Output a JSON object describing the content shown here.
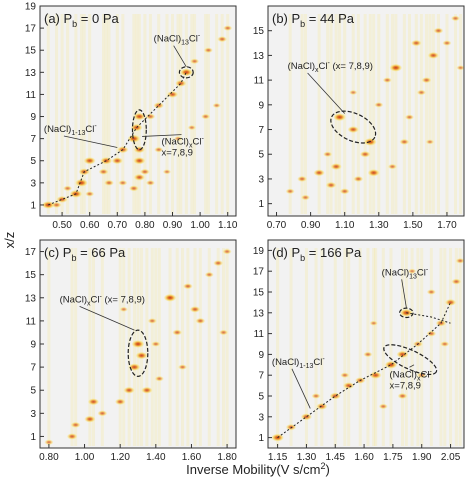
{
  "figure": {
    "ylabel": "x/z",
    "xlabel_text": "Inverse Mobility(V s/cm",
    "xlabel_sup": "2",
    "xlabel_close": ")"
  },
  "chart_data": [
    {
      "type": "heatmap",
      "panel_label": "(a) P",
      "panel_sub": "b",
      "panel_value": "= 0 Pa",
      "xlim": [
        0.42,
        1.13
      ],
      "ylim": [
        0,
        19
      ],
      "x_ticks": [
        "0.50",
        "0.60",
        "0.70",
        "0.80",
        "0.90",
        "1.00",
        "1.10"
      ],
      "y_ticks": [
        "1",
        "3",
        "5",
        "7",
        "9",
        "11",
        "13",
        "15",
        "17",
        "19"
      ],
      "spots": [
        [
          0.45,
          1,
          1
        ],
        [
          0.5,
          1.5,
          0.8
        ],
        [
          0.55,
          2,
          1
        ],
        [
          0.57,
          3,
          1
        ],
        [
          0.58,
          4,
          0.8
        ],
        [
          0.6,
          5,
          0.9
        ],
        [
          0.65,
          4,
          0.6
        ],
        [
          0.66,
          5,
          0.9
        ],
        [
          0.7,
          5,
          0.8
        ],
        [
          0.72,
          6,
          0.8
        ],
        [
          0.76,
          7,
          1
        ],
        [
          0.77,
          8,
          0.9
        ],
        [
          0.78,
          9,
          0.9
        ],
        [
          0.78,
          6,
          0.8
        ],
        [
          0.8,
          4,
          0.6
        ],
        [
          0.82,
          9,
          0.6
        ],
        [
          0.85,
          10,
          0.7
        ],
        [
          0.9,
          11,
          0.8
        ],
        [
          0.93,
          12,
          0.8
        ],
        [
          0.95,
          13,
          1
        ],
        [
          0.98,
          14,
          0.5
        ],
        [
          1.03,
          15,
          0.5
        ],
        [
          1.08,
          16,
          0.6
        ],
        [
          1.1,
          17,
          0.5
        ],
        [
          0.6,
          2,
          0.5
        ],
        [
          0.67,
          3,
          0.6
        ],
        [
          0.72,
          3,
          0.5
        ],
        [
          0.76,
          2.5,
          0.6
        ],
        [
          0.78,
          3.5,
          0.8
        ],
        [
          0.78,
          5,
          0.9
        ],
        [
          0.82,
          3,
          0.5
        ],
        [
          0.85,
          6,
          0.5
        ],
        [
          0.88,
          4,
          0.4
        ],
        [
          0.92,
          7,
          0.4
        ],
        [
          0.97,
          8,
          0.4
        ],
        [
          1.02,
          9,
          0.5
        ],
        [
          1.06,
          10,
          0.4
        ],
        [
          0.52,
          2.5,
          0.5
        ],
        [
          0.48,
          1,
          0.6
        ]
      ],
      "series_line": [
        [
          0.45,
          1
        ],
        [
          0.55,
          2
        ],
        [
          0.58,
          4
        ],
        [
          0.66,
          5
        ],
        [
          0.72,
          6
        ],
        [
          0.77,
          8
        ],
        [
          0.85,
          10
        ],
        [
          0.93,
          12
        ],
        [
          0.95,
          13
        ]
      ],
      "ellipses": [
        {
          "x": 0.78,
          "y": 7.8,
          "rx": 0.025,
          "ry": 1.8
        },
        {
          "x": 0.95,
          "y": 13,
          "rx": 0.025,
          "ry": 0.5
        }
      ],
      "annotations": [
        {
          "text": "(NaCl)",
          "sub": "13",
          "sup": "Cl",
          "sup2": "-",
          "anchor": "top-right"
        },
        {
          "text": "(NaCl)",
          "sub": "1-13",
          "sup": "Cl",
          "sup2": "-",
          "anchor": "mid-left"
        },
        {
          "text": "(NaCl)",
          "sub": "x",
          "sup": "Cl",
          "sup2": "-",
          "extra": "x=7,8,9",
          "anchor": "mid-right"
        }
      ]
    },
    {
      "type": "heatmap",
      "panel_label": "(b) P",
      "panel_sub": "b",
      "panel_value": "= 44 Pa",
      "xlim": [
        0.65,
        1.8
      ],
      "ylim": [
        0,
        17
      ],
      "x_ticks": [
        "0.70",
        "0.90",
        "1.10",
        "1.30",
        "1.50",
        "1.70"
      ],
      "y_ticks": [
        "1",
        "3",
        "5",
        "7",
        "9",
        "11",
        "13",
        "15"
      ],
      "spots": [
        [
          0.78,
          2,
          0.5
        ],
        [
          0.85,
          3,
          0.6
        ],
        [
          0.87,
          1.5,
          0.5
        ],
        [
          0.95,
          3.5,
          0.8
        ],
        [
          1.02,
          2.5,
          0.7
        ],
        [
          1.05,
          4,
          0.8
        ],
        [
          1.07,
          8,
          1
        ],
        [
          1.1,
          2,
          0.6
        ],
        [
          1.15,
          7,
          0.8
        ],
        [
          1.18,
          3,
          0.6
        ],
        [
          1.22,
          5,
          0.7
        ],
        [
          1.25,
          6,
          1
        ],
        [
          1.27,
          3.5,
          0.9
        ],
        [
          1.3,
          9,
          0.5
        ],
        [
          1.38,
          4,
          0.5
        ],
        [
          1.4,
          12,
          1
        ],
        [
          1.45,
          6,
          0.6
        ],
        [
          1.48,
          8,
          0.5
        ],
        [
          1.52,
          14,
          0.7
        ],
        [
          1.55,
          10,
          0.5
        ],
        [
          1.58,
          11,
          0.6
        ],
        [
          1.62,
          13,
          0.8
        ],
        [
          1.65,
          15,
          0.6
        ],
        [
          1.7,
          14,
          0.5
        ],
        [
          1.75,
          16,
          0.5
        ],
        [
          1.78,
          12,
          0.4
        ],
        [
          1.15,
          10,
          0.4
        ],
        [
          1.0,
          5,
          0.5
        ],
        [
          1.35,
          11,
          0.5
        ],
        [
          1.6,
          6,
          0.4
        ]
      ],
      "ellipses": [
        {
          "x": 1.15,
          "y": 7.2,
          "rx": 0.14,
          "ry": 1.1
        }
      ],
      "annotations": [
        {
          "text": "(NaCl)",
          "sub": "x",
          "sup": "Cl",
          "sup2": "-",
          "extra": "(x= 7,8,9)",
          "anchor": "top-left"
        }
      ]
    },
    {
      "type": "heatmap",
      "panel_label": "(c) P",
      "panel_sub": "b",
      "panel_value": "= 66 Pa",
      "xlim": [
        0.75,
        1.85
      ],
      "ylim": [
        0,
        18
      ],
      "x_ticks": [
        "0.80",
        "1.00",
        "1.20",
        "1.40",
        "1.60",
        "1.80"
      ],
      "y_ticks": [
        "1",
        "3",
        "5",
        "7",
        "9",
        "11",
        "13",
        "15",
        "17"
      ],
      "spots": [
        [
          0.8,
          0.5,
          0.5
        ],
        [
          0.93,
          1,
          0.7
        ],
        [
          0.95,
          2,
          0.6
        ],
        [
          1.03,
          2.5,
          0.8
        ],
        [
          1.05,
          4,
          0.8
        ],
        [
          1.1,
          3,
          0.6
        ],
        [
          1.2,
          4,
          0.7
        ],
        [
          1.25,
          5,
          0.8
        ],
        [
          1.28,
          7,
          0.9
        ],
        [
          1.3,
          9,
          1
        ],
        [
          1.32,
          8,
          0.9
        ],
        [
          1.35,
          5,
          0.8
        ],
        [
          1.38,
          11,
          0.5
        ],
        [
          1.42,
          6,
          0.5
        ],
        [
          1.48,
          13,
          1
        ],
        [
          1.52,
          10,
          0.6
        ],
        [
          1.55,
          7,
          0.5
        ],
        [
          1.58,
          14,
          0.6
        ],
        [
          1.62,
          12,
          0.7
        ],
        [
          1.65,
          11,
          0.6
        ],
        [
          1.7,
          15,
          0.5
        ],
        [
          1.75,
          16,
          0.6
        ],
        [
          1.78,
          10,
          0.5
        ],
        [
          1.8,
          17,
          0.5
        ],
        [
          1.22,
          12,
          0.4
        ],
        [
          1.4,
          9,
          0.5
        ]
      ],
      "ellipses": [
        {
          "x": 1.3,
          "y": 8.2,
          "rx": 0.055,
          "ry": 2.0
        }
      ],
      "annotations": [
        {
          "text": "(NaCl)",
          "sub": "x",
          "sup": "Cl",
          "sup2": "-",
          "extra": "(x= 7,8,9)",
          "anchor": "top-left"
        }
      ]
    },
    {
      "type": "heatmap",
      "panel_label": "(d) P",
      "panel_sub": "b",
      "panel_value": "= 166 Pa",
      "xlim": [
        1.1,
        2.12
      ],
      "ylim": [
        0,
        20
      ],
      "x_ticks": [
        "1.15",
        "1.30",
        "1.45",
        "1.60",
        "1.75",
        "1.90",
        "2.05"
      ],
      "y_ticks": [
        "1",
        "3",
        "5",
        "7",
        "9",
        "11",
        "13",
        "15",
        "17",
        "19"
      ],
      "spots": [
        [
          1.15,
          1,
          1
        ],
        [
          1.22,
          2,
          0.7
        ],
        [
          1.3,
          3,
          0.8
        ],
        [
          1.38,
          4,
          0.8
        ],
        [
          1.45,
          5,
          0.8
        ],
        [
          1.52,
          6,
          0.8
        ],
        [
          1.58,
          6.5,
          0.7
        ],
        [
          1.66,
          7,
          0.9
        ],
        [
          1.74,
          8,
          1
        ],
        [
          1.8,
          9,
          0.9
        ],
        [
          1.82,
          13,
          1
        ],
        [
          1.88,
          10,
          0.6
        ],
        [
          1.95,
          11,
          0.6
        ],
        [
          2.0,
          12,
          0.7
        ],
        [
          2.05,
          14,
          0.8
        ],
        [
          2.08,
          16,
          0.6
        ],
        [
          2.1,
          18,
          0.5
        ],
        [
          1.35,
          5,
          0.5
        ],
        [
          1.5,
          7,
          0.5
        ],
        [
          1.62,
          9,
          0.5
        ],
        [
          1.7,
          4,
          0.5
        ],
        [
          1.8,
          5,
          0.6
        ],
        [
          1.9,
          7,
          0.5
        ],
        [
          1.95,
          15,
          0.5
        ],
        [
          2.02,
          10,
          0.5
        ],
        [
          1.65,
          12,
          0.4
        ],
        [
          1.85,
          17,
          0.4
        ]
      ],
      "series_line": [
        [
          1.15,
          1
        ],
        [
          1.3,
          3
        ],
        [
          1.45,
          5
        ],
        [
          1.58,
          6.5
        ],
        [
          1.74,
          8
        ],
        [
          1.88,
          10
        ],
        [
          2.0,
          12
        ],
        [
          2.05,
          14
        ]
      ],
      "series_line2": [
        [
          1.82,
          13
        ],
        [
          1.95,
          12.6
        ],
        [
          2.05,
          12
        ]
      ],
      "ellipses": [
        {
          "x": 1.82,
          "y": 13,
          "rx": 0.035,
          "ry": 0.45
        },
        {
          "x": 1.84,
          "y": 8.5,
          "rx": 0.15,
          "ry": 0.9
        }
      ],
      "annotations": [
        {
          "text": "(NaCl)",
          "sub": "13",
          "sup": "Cl",
          "sup2": "-",
          "anchor": "top-right"
        },
        {
          "text": "(NaCl)",
          "sub": "1-13",
          "sup": "Cl",
          "sup2": "-",
          "anchor": "mid-left"
        },
        {
          "text": "(NaCl)",
          "sub": "x",
          "sup": "Cl",
          "sup2": "-",
          "extra": "x=7,8,9",
          "anchor": "mid-right"
        }
      ]
    }
  ],
  "colors": {
    "panel_bg": "#f2f2f2",
    "spot_core": "#c0392b",
    "spot_mid": "#f39c12",
    "spot_outer": "#f7e27a",
    "frame": "#333333",
    "dashes": "#222222"
  }
}
